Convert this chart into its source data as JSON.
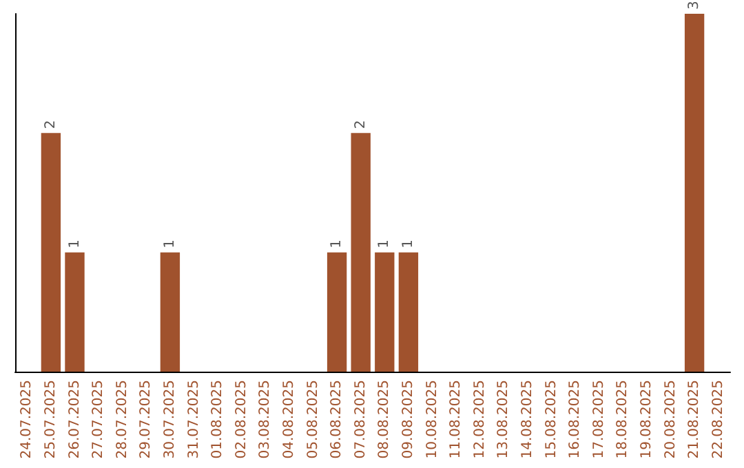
{
  "chart_data": {
    "type": "bar",
    "categories": [
      "24.07.2025",
      "25.07.2025",
      "26.07.2025",
      "27.07.2025",
      "28.07.2025",
      "29.07.2025",
      "30.07.2025",
      "31.07.2025",
      "01.08.2025",
      "02.08.2025",
      "03.08.2025",
      "04.08.2025",
      "05.08.2025",
      "06.08.2025",
      "07.08.2025",
      "08.08.2025",
      "09.08.2025",
      "10.08.2025",
      "11.08.2025",
      "12.08.2025",
      "13.08.2025",
      "14.08.2025",
      "15.08.2025",
      "16.08.2025",
      "17.08.2025",
      "18.08.2025",
      "19.08.2025",
      "20.08.2025",
      "21.08.2025",
      "22.08.2025"
    ],
    "values": [
      0,
      2,
      1,
      0,
      0,
      0,
      1,
      0,
      0,
      0,
      0,
      0,
      0,
      1,
      2,
      1,
      1,
      0,
      0,
      0,
      0,
      0,
      0,
      0,
      0,
      0,
      0,
      0,
      3,
      0
    ],
    "value_labels": [
      null,
      "2",
      "1",
      null,
      null,
      null,
      "1",
      null,
      null,
      null,
      null,
      null,
      null,
      "1",
      "2",
      "1",
      "1",
      null,
      null,
      null,
      null,
      null,
      null,
      null,
      null,
      null,
      null,
      null,
      "3",
      null
    ],
    "color": "#a0522d",
    "grid": false,
    "tick_labels": "x"
  }
}
